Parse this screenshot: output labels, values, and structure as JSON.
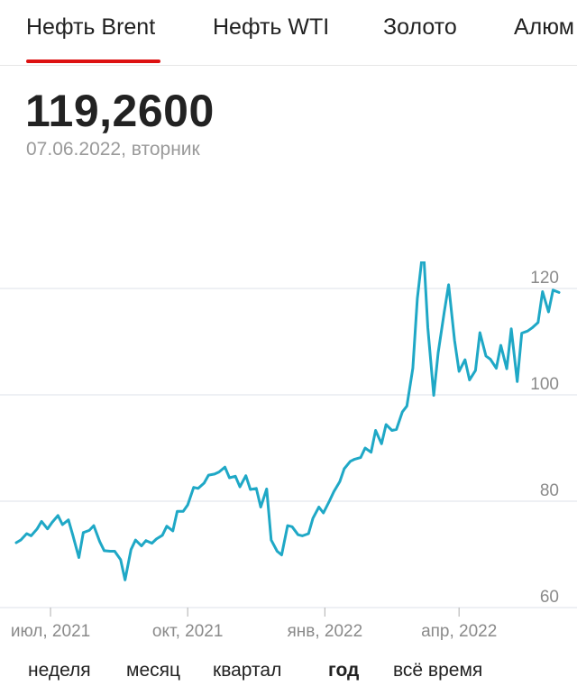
{
  "tabs": [
    {
      "label": "Нефть Brent",
      "active": true
    },
    {
      "label": "Нефть WTI",
      "active": false
    },
    {
      "label": "Золото",
      "active": false
    },
    {
      "label": "Алюм",
      "active": false
    }
  ],
  "quote": {
    "price": "119,2600",
    "date": "07.06.2022, вторник"
  },
  "periods": [
    {
      "label": "неделя",
      "active": false
    },
    {
      "label": "месяц",
      "active": false
    },
    {
      "label": "квартал",
      "active": false
    },
    {
      "label": "год",
      "active": true
    },
    {
      "label": "всё время",
      "active": false
    }
  ],
  "colors": {
    "line": "#1fa8c6",
    "accent": "#dd1111",
    "grid": "#e3e6ee",
    "tick": "#8a8a8a"
  },
  "chart_data": {
    "type": "line",
    "title": "",
    "xlabel": "",
    "ylabel": "",
    "ylim": [
      60,
      125
    ],
    "yticks": [
      {
        "value": 120,
        "label": "120"
      },
      {
        "value": 100,
        "label": "100"
      },
      {
        "value": 80,
        "label": "80"
      },
      {
        "value": 60,
        "label": "60"
      }
    ],
    "xticks": [
      {
        "date": "2021-07-01",
        "label": "июл, 2021"
      },
      {
        "date": "2021-10-01",
        "label": "окт, 2021"
      },
      {
        "date": "2022-01-01",
        "label": "янв, 2022"
      },
      {
        "date": "2022-04-01",
        "label": "апр, 2022"
      }
    ],
    "grid": true,
    "series": [
      {
        "points": [
          [
            "2021-06-08",
            72.2
          ],
          [
            "2021-06-11",
            72.7
          ],
          [
            "2021-06-15",
            73.9
          ],
          [
            "2021-06-18",
            73.5
          ],
          [
            "2021-06-22",
            74.8
          ],
          [
            "2021-06-25",
            76.2
          ],
          [
            "2021-06-29",
            74.8
          ],
          [
            "2021-07-02",
            76.0
          ],
          [
            "2021-07-06",
            77.3
          ],
          [
            "2021-07-09",
            75.6
          ],
          [
            "2021-07-13",
            76.5
          ],
          [
            "2021-07-16",
            73.6
          ],
          [
            "2021-07-20",
            69.4
          ],
          [
            "2021-07-23",
            74.1
          ],
          [
            "2021-07-27",
            74.5
          ],
          [
            "2021-07-30",
            75.4
          ],
          [
            "2021-08-03",
            72.4
          ],
          [
            "2021-08-06",
            70.7
          ],
          [
            "2021-08-10",
            70.6
          ],
          [
            "2021-08-13",
            70.6
          ],
          [
            "2021-08-17",
            69.0
          ],
          [
            "2021-08-20",
            65.2
          ],
          [
            "2021-08-24",
            70.9
          ],
          [
            "2021-08-27",
            72.7
          ],
          [
            "2021-08-31",
            71.6
          ],
          [
            "2021-09-03",
            72.6
          ],
          [
            "2021-09-07",
            72.1
          ],
          [
            "2021-09-10",
            72.9
          ],
          [
            "2021-09-14",
            73.6
          ],
          [
            "2021-09-17",
            75.3
          ],
          [
            "2021-09-21",
            74.4
          ],
          [
            "2021-09-24",
            78.1
          ],
          [
            "2021-09-28",
            78.1
          ],
          [
            "2021-10-01",
            79.3
          ],
          [
            "2021-10-05",
            82.6
          ],
          [
            "2021-10-08",
            82.4
          ],
          [
            "2021-10-12",
            83.4
          ],
          [
            "2021-10-15",
            84.9
          ],
          [
            "2021-10-19",
            85.1
          ],
          [
            "2021-10-22",
            85.5
          ],
          [
            "2021-10-26",
            86.4
          ],
          [
            "2021-10-29",
            84.4
          ],
          [
            "2021-11-02",
            84.7
          ],
          [
            "2021-11-05",
            82.7
          ],
          [
            "2021-11-09",
            84.8
          ],
          [
            "2021-11-12",
            82.2
          ],
          [
            "2021-11-16",
            82.4
          ],
          [
            "2021-11-19",
            78.9
          ],
          [
            "2021-11-23",
            82.3
          ],
          [
            "2021-11-26",
            72.7
          ],
          [
            "2021-11-30",
            70.6
          ],
          [
            "2021-12-03",
            69.9
          ],
          [
            "2021-12-07",
            75.4
          ],
          [
            "2021-12-10",
            75.2
          ],
          [
            "2021-12-14",
            73.7
          ],
          [
            "2021-12-17",
            73.5
          ],
          [
            "2021-12-21",
            73.9
          ],
          [
            "2021-12-24",
            76.8
          ],
          [
            "2021-12-28",
            78.9
          ],
          [
            "2021-12-31",
            77.8
          ],
          [
            "2022-01-04",
            80.0
          ],
          [
            "2022-01-07",
            81.8
          ],
          [
            "2022-01-11",
            83.7
          ],
          [
            "2022-01-14",
            86.1
          ],
          [
            "2022-01-18",
            87.5
          ],
          [
            "2022-01-21",
            87.9
          ],
          [
            "2022-01-25",
            88.2
          ],
          [
            "2022-01-28",
            90.0
          ],
          [
            "2022-02-01",
            89.2
          ],
          [
            "2022-02-04",
            93.3
          ],
          [
            "2022-02-08",
            90.8
          ],
          [
            "2022-02-11",
            94.4
          ],
          [
            "2022-02-15",
            93.3
          ],
          [
            "2022-02-18",
            93.5
          ],
          [
            "2022-02-22",
            96.8
          ],
          [
            "2022-02-25",
            97.9
          ],
          [
            "2022-03-01",
            105.0
          ],
          [
            "2022-03-04",
            118.1
          ],
          [
            "2022-03-08",
            127.9
          ],
          [
            "2022-03-11",
            112.7
          ],
          [
            "2022-03-15",
            99.9
          ],
          [
            "2022-03-18",
            107.9
          ],
          [
            "2022-03-22",
            115.5
          ],
          [
            "2022-03-25",
            120.7
          ],
          [
            "2022-03-29",
            110.2
          ],
          [
            "2022-04-01",
            104.4
          ],
          [
            "2022-04-05",
            106.6
          ],
          [
            "2022-04-08",
            102.8
          ],
          [
            "2022-04-12",
            104.6
          ],
          [
            "2022-04-15",
            111.7
          ],
          [
            "2022-04-19",
            107.3
          ],
          [
            "2022-04-22",
            106.7
          ],
          [
            "2022-04-26",
            105.0
          ],
          [
            "2022-04-29",
            109.3
          ],
          [
            "2022-05-03",
            104.9
          ],
          [
            "2022-05-06",
            112.4
          ],
          [
            "2022-05-10",
            102.5
          ],
          [
            "2022-05-13",
            111.6
          ],
          [
            "2022-05-17",
            112.0
          ],
          [
            "2022-05-20",
            112.6
          ],
          [
            "2022-05-24",
            113.6
          ],
          [
            "2022-05-27",
            119.4
          ],
          [
            "2022-05-31",
            115.6
          ],
          [
            "2022-06-03",
            119.7
          ],
          [
            "2022-06-07",
            119.26
          ]
        ]
      }
    ]
  }
}
